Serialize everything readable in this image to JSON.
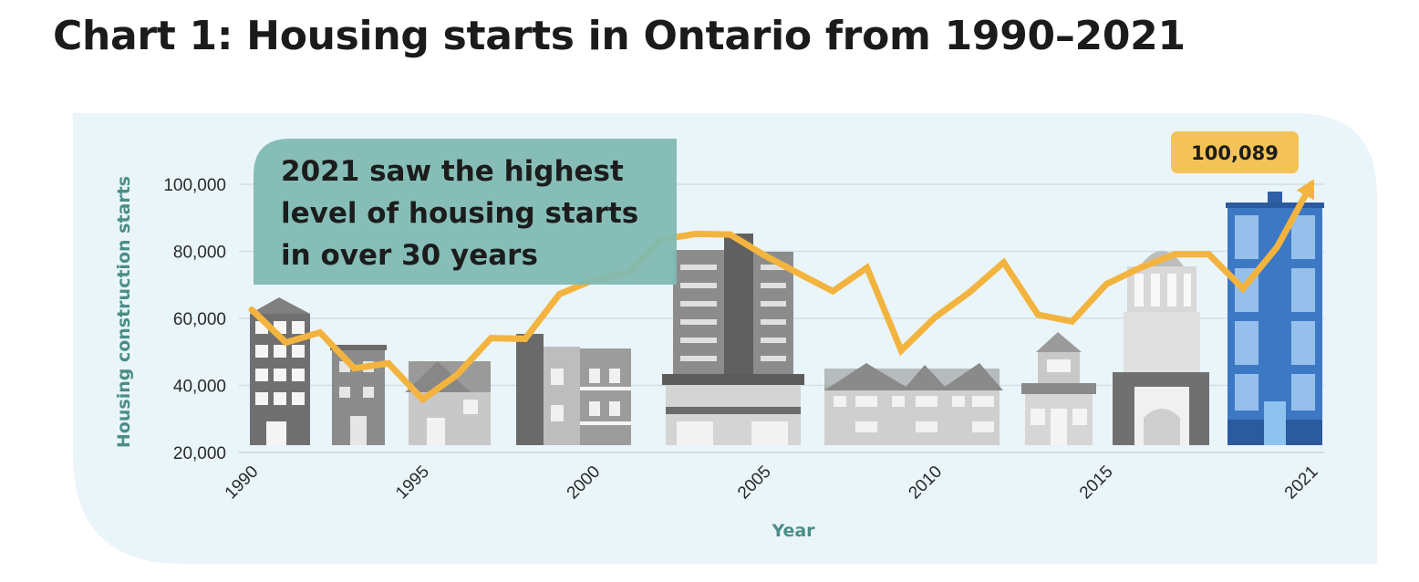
{
  "page": {
    "title": "Chart 1: Housing starts in Ontario from 1990–2021"
  },
  "chart_data": {
    "type": "line",
    "title": "Chart 1: Housing starts in Ontario from 1990–2021",
    "xlabel": "Year",
    "ylabel": "Housing construction starts",
    "x": [
      1990,
      1991,
      1992,
      1993,
      1994,
      1995,
      1996,
      1997,
      1998,
      1999,
      2000,
      2001,
      2002,
      2003,
      2004,
      2005,
      2006,
      2007,
      2008,
      2009,
      2010,
      2011,
      2012,
      2013,
      2014,
      2015,
      2016,
      2017,
      2018,
      2019,
      2020,
      2021
    ],
    "values": [
      62600,
      52800,
      55800,
      45100,
      46600,
      35800,
      43100,
      54100,
      53900,
      67200,
      71500,
      73300,
      83600,
      85200,
      85000,
      78800,
      73400,
      68100,
      75100,
      50400,
      60400,
      67800,
      76700,
      61100,
      59100,
      70200,
      75100,
      79100,
      79100,
      68900,
      81300,
      100089
    ],
    "xticks": [
      1990,
      1995,
      2000,
      2005,
      2010,
      2015,
      2021
    ],
    "xtick_labels": [
      "1990",
      "1995",
      "2000",
      "2005",
      "2010",
      "2015",
      "2021"
    ],
    "yticks": [
      20000,
      40000,
      60000,
      80000,
      100000
    ],
    "ytick_labels": [
      "20,000",
      "40,000",
      "60,000",
      "80,000",
      "100,000"
    ],
    "xlim": [
      1990,
      2021
    ],
    "ylim": [
      20000,
      100000
    ],
    "grid": true,
    "series_color": "#f3b43f",
    "annotations": {
      "callout": [
        "2021 saw the highest",
        "level of housing starts",
        "in over 30 years"
      ],
      "peak_label": "100,089"
    },
    "colors": {
      "panel_bg": "#eaf5fa",
      "callout_bg": "#7fbab3",
      "peak_bg": "#f3c357",
      "axis_title": "#4b8d88"
    }
  }
}
